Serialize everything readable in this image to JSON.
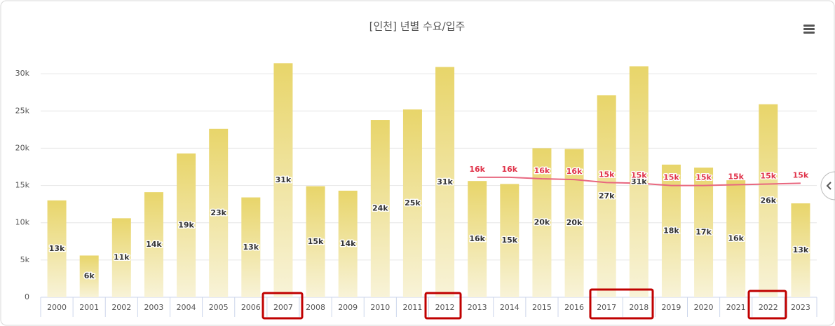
{
  "chart_data": {
    "type": "bar",
    "title": "[인천] 년별 수요/입주",
    "categories": [
      "2000",
      "2001",
      "2002",
      "2003",
      "2004",
      "2005",
      "2006",
      "2007",
      "2008",
      "2009",
      "2010",
      "2011",
      "2012",
      "2013",
      "2014",
      "2015",
      "2016",
      "2017",
      "2018",
      "2019",
      "2020",
      "2021",
      "2022",
      "2023"
    ],
    "series": [
      {
        "type": "bar",
        "color": "#e8d56a",
        "values": [
          13000,
          5600,
          10600,
          14100,
          19300,
          22600,
          13400,
          31400,
          14900,
          14300,
          23800,
          25200,
          30900,
          15600,
          15200,
          20000,
          19900,
          27100,
          31000,
          17800,
          17400,
          15700,
          25900,
          12600
        ],
        "value_labels": [
          "13k",
          "6k",
          "11k",
          "14k",
          "19k",
          "23k",
          "13k",
          "31k",
          "15k",
          "14k",
          "24k",
          "25k",
          "31k",
          "16k",
          "15k",
          "20k",
          "20k",
          "27k",
          "31k",
          "18k",
          "17k",
          "16k",
          "26k",
          "13k"
        ]
      },
      {
        "type": "line",
        "color": "#e8677f",
        "values": [
          null,
          null,
          null,
          null,
          null,
          null,
          null,
          null,
          null,
          null,
          null,
          null,
          null,
          16100,
          16100,
          15900,
          15800,
          15400,
          15300,
          15000,
          15000,
          15100,
          15200,
          15300
        ],
        "value_labels": [
          null,
          null,
          null,
          null,
          null,
          null,
          null,
          null,
          null,
          null,
          null,
          null,
          null,
          "16k",
          "16k",
          "16k",
          "16k",
          "15k",
          "15k",
          "15k",
          "15k",
          "15k",
          "15k",
          "15k"
        ]
      }
    ],
    "ylim": [
      0,
      35000
    ],
    "yticks": [
      0,
      {
        "value": 5000,
        "label": "5k"
      },
      {
        "value": 10000,
        "label": "10k"
      },
      {
        "value": 15000,
        "label": "15k"
      },
      {
        "value": 20000,
        "label": "20k"
      },
      {
        "value": 25000,
        "label": "25k"
      },
      {
        "value": 30000,
        "label": "30k"
      }
    ],
    "grid": true
  }
}
